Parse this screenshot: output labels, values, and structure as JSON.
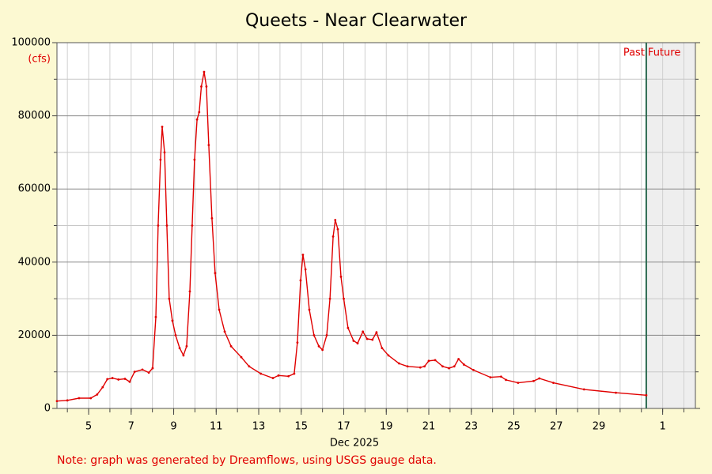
{
  "chart_data": {
    "type": "line",
    "title": "Queets - Near Clearwater",
    "ylabel": "(cfs)",
    "xlabel": "Dec 2025",
    "note": "Note: graph was generated by Dreamflows, using USGS gauge data.",
    "past_label": "Past",
    "future_label": "Future",
    "now": 31.23,
    "xlim": [
      3.51,
      33.54
    ],
    "xticks": [
      5,
      7,
      9,
      11,
      13,
      15,
      17,
      19,
      21,
      23,
      25,
      27,
      29,
      {
        "value": 32,
        "label": "1"
      }
    ],
    "xminorticks": [
      4,
      5,
      6,
      7,
      8,
      9,
      10,
      11,
      12,
      13,
      14,
      15,
      16,
      17,
      18,
      19,
      20,
      21,
      22,
      23,
      24,
      25,
      26,
      27,
      28,
      29,
      30,
      31,
      32,
      33
    ],
    "ylim": [
      0,
      100000
    ],
    "yticks": [
      0,
      20000,
      40000,
      60000,
      80000,
      100000
    ],
    "yminorticks": [
      10000,
      30000,
      50000,
      70000,
      90000
    ],
    "grid": true,
    "series": [
      {
        "name": "Flow",
        "color": "#e00000",
        "x": [
          3.51,
          4.0,
          4.55,
          5.1,
          5.4,
          5.66,
          5.88,
          6.12,
          6.4,
          6.71,
          6.93,
          7.16,
          7.53,
          7.83,
          8.01,
          8.16,
          8.27,
          8.38,
          8.46,
          8.57,
          8.68,
          8.79,
          8.94,
          9.09,
          9.28,
          9.46,
          9.61,
          9.76,
          9.87,
          9.98,
          10.1,
          10.2,
          10.3,
          10.43,
          10.54,
          10.65,
          10.8,
          10.95,
          11.14,
          11.4,
          11.7,
          12.18,
          12.55,
          13.1,
          13.67,
          13.93,
          14.4,
          14.67,
          14.82,
          14.97,
          15.08,
          15.2,
          15.38,
          15.6,
          15.83,
          16.0,
          16.2,
          16.35,
          16.5,
          16.6,
          16.72,
          16.87,
          17.0,
          17.2,
          17.46,
          17.65,
          17.9,
          18.1,
          18.35,
          18.54,
          18.8,
          19.1,
          19.6,
          20.0,
          20.6,
          20.8,
          21.0,
          21.3,
          21.65,
          21.95,
          22.2,
          22.4,
          22.65,
          23.1,
          23.9,
          24.4,
          24.63,
          25.2,
          25.93,
          26.2,
          26.86,
          28.3,
          29.8,
          31.23
        ],
        "values": [
          2000,
          2200,
          2800,
          2800,
          3800,
          5800,
          8000,
          8300,
          7900,
          8100,
          7300,
          10000,
          10600,
          9800,
          11000,
          25000,
          50000,
          68000,
          77000,
          70000,
          50000,
          30000,
          24000,
          20000,
          16500,
          14500,
          17000,
          32000,
          50000,
          68000,
          79000,
          81000,
          88000,
          92000,
          88000,
          72000,
          52000,
          37000,
          27000,
          21000,
          17000,
          14000,
          11500,
          9500,
          8300,
          9000,
          8800,
          9500,
          18000,
          35000,
          42000,
          38000,
          27000,
          20000,
          17000,
          16000,
          20000,
          30000,
          47000,
          51500,
          49000,
          36000,
          30000,
          22000,
          18500,
          17800,
          21000,
          19000,
          18800,
          20800,
          16500,
          14500,
          12300,
          11500,
          11200,
          11500,
          13000,
          13200,
          11500,
          11000,
          11500,
          13500,
          12000,
          10500,
          8500,
          8700,
          7800,
          7000,
          7500,
          8200,
          7000,
          5200,
          4300,
          3600
        ]
      }
    ]
  }
}
